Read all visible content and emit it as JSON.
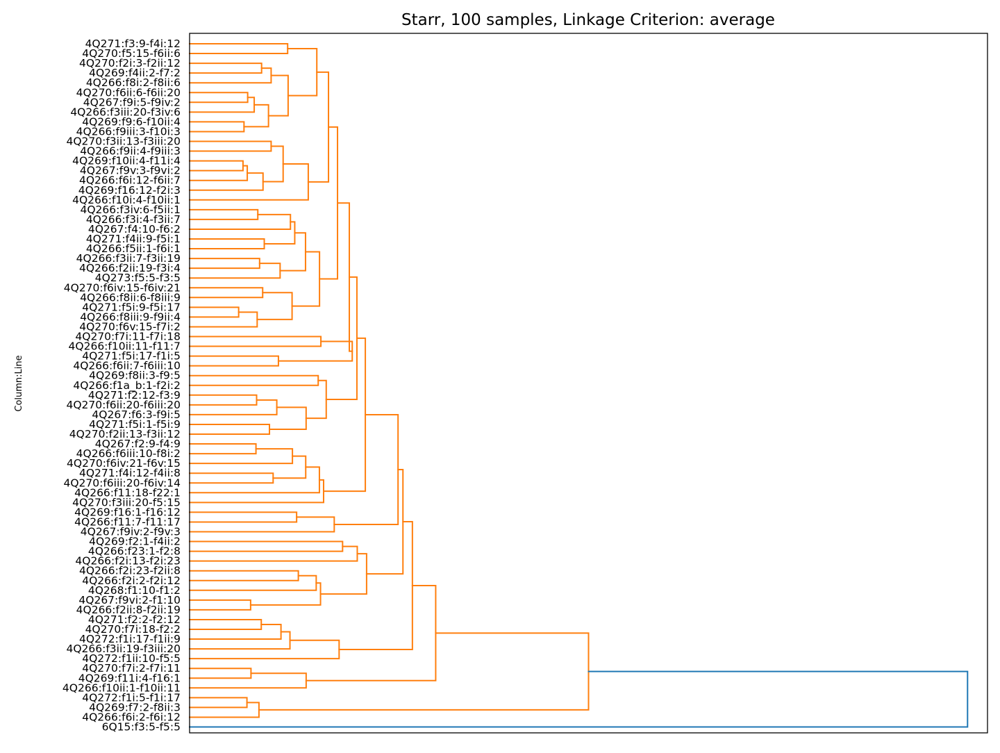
{
  "chart_data": {
    "type": "dendrogram",
    "orientation": "left",
    "title": "Starr, 100 samples, Linkage Criterion: average",
    "ylabel": "Column:Line",
    "xlabel": "",
    "xlim": [
      0,
      1
    ],
    "colors": {
      "cluster": "#ff7f0e",
      "above_threshold": "#1f77b4"
    },
    "leaves": [
      "4Q271:f3:9-f4i:12",
      "4Q270:f5:15-f6ii:6",
      "4Q270:f2i:3-f2ii:12",
      "4Q269:f4ii:2-f7:2",
      "4Q266:f8i:2-f8ii:6",
      "4Q270:f6ii:6-f6ii:20",
      "4Q267:f9i:5-f9iv:2",
      "4Q266:f3iii:20-f3iv:6",
      "4Q269:f9:6-f10ii:4",
      "4Q266:f9iii:3-f10i:3",
      "4Q270:f3ii:13-f3iii:20",
      "4Q266:f9ii:4-f9iii:3",
      "4Q269:f10ii:4-f11i:4",
      "4Q267:f9v:3-f9vi:2",
      "4Q266:f6i:12-f6ii:7",
      "4Q269:f16:12-f2i:3",
      "4Q266:f10i:4-f10ii:1",
      "4Q266:f3iv:6-f5ii:1",
      "4Q266:f3i:4-f3ii:7",
      "4Q267:f4:10-f6:2",
      "4Q271:f4ii:9-f5i:1",
      "4Q266:f5ii:1-f6i:1",
      "4Q266:f3ii:7-f3ii:19",
      "4Q266:f2ii:19-f3i:4",
      "4Q273:f5:5-f3:5",
      "4Q270:f6iv:15-f6iv:21",
      "4Q266:f8ii:6-f8iii:9",
      "4Q271:f5i:9-f5i:17",
      "4Q266:f8iii:9-f9ii:4",
      "4Q270:f6v:15-f7i:2",
      "4Q270:f7i:11-f7i:18",
      "4Q266:f10ii:11-f11:7",
      "4Q271:f5i:17-f1i:5",
      "4Q266:f6ii:7-f6iii:10",
      "4Q269:f8ii:3-f9:5",
      "4Q266:f1a_b:1-f2i:2",
      "4Q271:f2:12-f3:9",
      "4Q270:f6ii:20-f6iii:20",
      "4Q267:f6:3-f9i:5",
      "4Q271:f5i:1-f5i:9",
      "4Q270:f2ii:13-f3ii:12",
      "4Q267:f2:9-f4:9",
      "4Q266:f6iii:10-f8i:2",
      "4Q270:f6iv:21-f6v:15",
      "4Q271:f4i:12-f4ii:8",
      "4Q270:f6iii:20-f6iv:14",
      "4Q266:f11:18-f22:1",
      "4Q270:f3iii:20-f5:15",
      "4Q269:f16:1-f16:12",
      "4Q266:f11:7-f11:17",
      "4Q267:f9iv:2-f9v:3",
      "4Q269:f2:1-f4ii:2",
      "4Q266:f23:1-f2:8",
      "4Q266:f2i:13-f2i:23",
      "4Q266:f2i:23-f2ii:8",
      "4Q266:f2i:2-f2i:12",
      "4Q268:f1:10-f1:2",
      "4Q267:f9vi:2-f1:10",
      "4Q266:f2ii:8-f2ii:19",
      "4Q271:f2:2-f2:12",
      "4Q270:f7i:18-f2:2",
      "4Q272:f1i:17-f1ii:9",
      "4Q266:f3ii:19-f3iii:20",
      "4Q272:f1ii:10-f5:5",
      "4Q270:f7i:2-f7i:11",
      "4Q269:f11i:4-f16:1",
      "4Q266:f10ii:1-f10ii:11",
      "4Q272:f1i:5-f1i:17",
      "4Q269:f7:2-f8ii:3",
      "4Q266:f6i:2-f6i:12",
      "6Q15:f3:5-f5:5"
    ],
    "merges": [
      {
        "a": "L0",
        "b": "L1",
        "height": 0.2458
      },
      {
        "a": "L2",
        "b": "L3",
        "height": 0.1805
      },
      {
        "a": "m1",
        "b": "L4",
        "height": 0.2044
      },
      {
        "a": "L5",
        "b": "L6",
        "height": 0.1456
      },
      {
        "a": "m3",
        "b": "L7",
        "height": 0.162
      },
      {
        "a": "L8",
        "b": "L9",
        "height": 0.1364
      },
      {
        "a": "m4",
        "b": "m5",
        "height": 0.1978
      },
      {
        "a": "m2",
        "b": "m6",
        "height": 0.247
      },
      {
        "a": "m0",
        "b": "m7",
        "height": 0.3189
      },
      {
        "a": "L10",
        "b": "L11",
        "height": 0.2044
      },
      {
        "a": "L12",
        "b": "L13",
        "height": 0.1339
      },
      {
        "a": "m10",
        "b": "L14",
        "height": 0.1446
      },
      {
        "a": "m11",
        "b": "L15",
        "height": 0.1841
      },
      {
        "a": "m9",
        "b": "m12",
        "height": 0.2345
      },
      {
        "a": "m13",
        "b": "L16",
        "height": 0.2975
      },
      {
        "a": "m8",
        "b": "m14",
        "height": 0.3482
      },
      {
        "a": "L17",
        "b": "L18",
        "height": 0.171
      },
      {
        "a": "m16",
        "b": "L19",
        "height": 0.2528
      },
      {
        "a": "L20",
        "b": "L21",
        "height": 0.1872
      },
      {
        "a": "m17",
        "b": "m18",
        "height": 0.2636
      },
      {
        "a": "L22",
        "b": "L23",
        "height": 0.1755
      },
      {
        "a": "m20",
        "b": "L24",
        "height": 0.2269
      },
      {
        "a": "m19",
        "b": "m21",
        "height": 0.2906
      },
      {
        "a": "L25",
        "b": "L26",
        "height": 0.1832
      },
      {
        "a": "L27",
        "b": "L28",
        "height": 0.123
      },
      {
        "a": "m24",
        "b": "L29",
        "height": 0.1694
      },
      {
        "a": "m23",
        "b": "m25",
        "height": 0.2569
      },
      {
        "a": "m22",
        "b": "m26",
        "height": 0.3257
      },
      {
        "a": "m15",
        "b": "m27",
        "height": 0.3708
      },
      {
        "a": "L30",
        "b": "L31",
        "height": 0.3291
      },
      {
        "a": "L32",
        "b": "L33",
        "height": 0.2227
      },
      {
        "a": "m29",
        "b": "m30",
        "height": 0.4077
      },
      {
        "a": "m28",
        "b": "m31",
        "height": 0.4004
      },
      {
        "a": "L34",
        "b": "L35",
        "height": 0.3224
      },
      {
        "a": "L36",
        "b": "L37",
        "height": 0.168
      },
      {
        "a": "m34",
        "b": "L38",
        "height": 0.2186
      },
      {
        "a": "L39",
        "b": "L40",
        "height": 0.2002
      },
      {
        "a": "m35",
        "b": "m36",
        "height": 0.2921
      },
      {
        "a": "m33",
        "b": "m37",
        "height": 0.3425
      },
      {
        "a": "m32",
        "b": "m38",
        "height": 0.4194
      },
      {
        "a": "L41",
        "b": "L42",
        "height": 0.1664
      },
      {
        "a": "m40",
        "b": "L43",
        "height": 0.2578
      },
      {
        "a": "L44",
        "b": "L45",
        "height": 0.2094
      },
      {
        "a": "m41",
        "b": "m42",
        "height": 0.2911
      },
      {
        "a": "m43",
        "b": "L46",
        "height": 0.3254
      },
      {
        "a": "m44",
        "b": "L47",
        "height": 0.3359
      },
      {
        "a": "m39",
        "b": "m45",
        "height": 0.4405
      },
      {
        "a": "L48",
        "b": "L49",
        "height": 0.2683
      },
      {
        "a": "m47",
        "b": "L50",
        "height": 0.3626
      },
      {
        "a": "m46",
        "b": "m48",
        "height": 0.5225
      },
      {
        "a": "L51",
        "b": "L52",
        "height": 0.3835
      },
      {
        "a": "m50",
        "b": "L53",
        "height": 0.4203
      },
      {
        "a": "L54",
        "b": "L55",
        "height": 0.2726
      },
      {
        "a": "m52",
        "b": "L56",
        "height": 0.3174
      },
      {
        "a": "L57",
        "b": "L58",
        "height": 0.153
      },
      {
        "a": "m53",
        "b": "m54",
        "height": 0.3282
      },
      {
        "a": "m51",
        "b": "m55",
        "height": 0.4437
      },
      {
        "a": "m49",
        "b": "m56",
        "height": 0.5348
      },
      {
        "a": "L59",
        "b": "L60",
        "height": 0.1797
      },
      {
        "a": "m58",
        "b": "L61",
        "height": 0.2291
      },
      {
        "a": "m59",
        "b": "L62",
        "height": 0.2516
      },
      {
        "a": "m60",
        "b": "L63",
        "height": 0.3748
      },
      {
        "a": "m57",
        "b": "m61",
        "height": 0.5585
      },
      {
        "a": "L64",
        "b": "L65",
        "height": 0.1539
      },
      {
        "a": "m63",
        "b": "L66",
        "height": 0.2922
      },
      {
        "a": "m62",
        "b": "m64",
        "height": 0.6169
      },
      {
        "a": "L67",
        "b": "L68",
        "height": 0.1438
      },
      {
        "a": "m66",
        "b": "L69",
        "height": 0.1739
      },
      {
        "a": "m65",
        "b": "m67",
        "height": 1.0
      },
      {
        "a": "m68",
        "b": "L70",
        "height": 1.95
      }
    ]
  }
}
